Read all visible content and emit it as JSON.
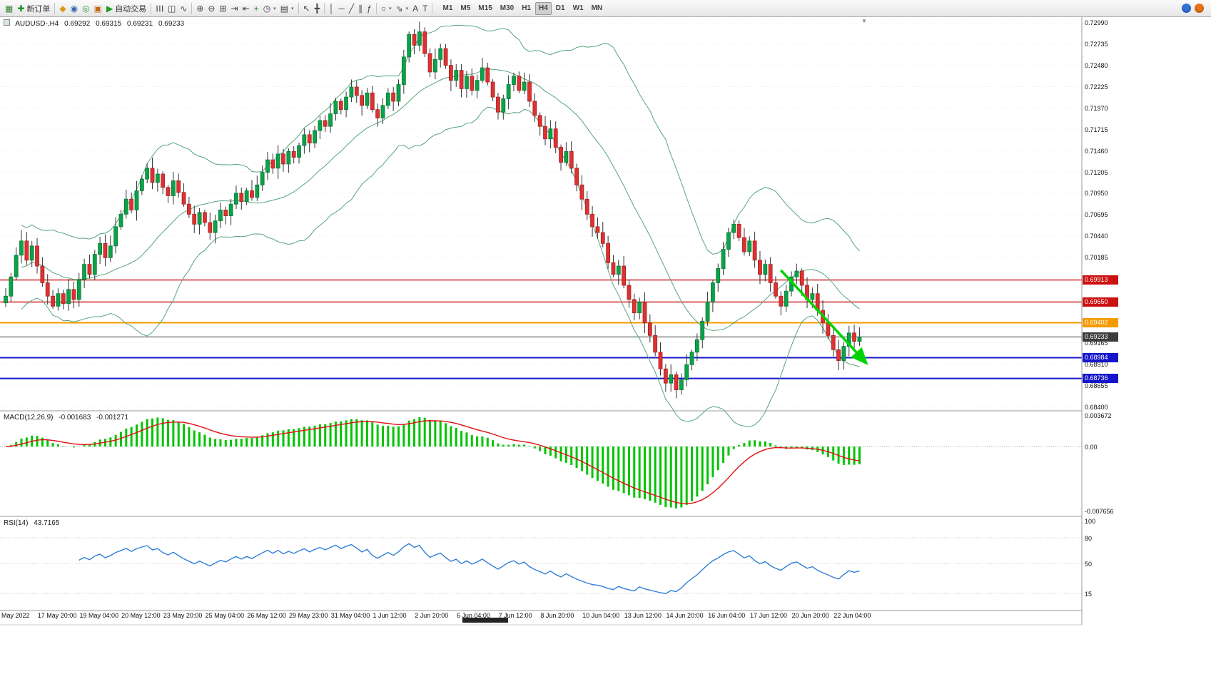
{
  "toolbar": {
    "items": [
      {
        "name": "new-chart-icon",
        "glyph": "▦",
        "color": "#3C8A3C"
      },
      {
        "name": "new-order-button",
        "glyph": "✚",
        "color": "#1C8A1C",
        "label": "新订单"
      },
      {
        "sep": true
      },
      {
        "name": "profiles-icon",
        "glyph": "◆",
        "color": "#D99A18"
      },
      {
        "name": "market-watch-icon",
        "glyph": "◉",
        "color": "#3467B0"
      },
      {
        "name": "navigator-icon",
        "glyph": "◎",
        "color": "#2E9E4F"
      },
      {
        "name": "terminal-icon",
        "glyph": "▣",
        "color": "#C06818"
      },
      {
        "name": "autotrading-button",
        "glyph": "▶",
        "color": "#17A017",
        "label": "自动交易"
      },
      {
        "sep": true
      },
      {
        "name": "bar-chart-icon",
        "glyph": "☰",
        "color": "#444",
        "rot": true
      },
      {
        "name": "candlestick-chart-icon",
        "glyph": "◫",
        "color": "#444"
      },
      {
        "name": "line-chart-icon",
        "glyph": "∿",
        "color": "#444"
      },
      {
        "sep": true
      },
      {
        "name": "zoom-in-icon",
        "glyph": "⊕",
        "color": "#444"
      },
      {
        "name": "zoom-out-icon",
        "glyph": "⊖",
        "color": "#444"
      },
      {
        "name": "tile-windows-icon",
        "glyph": "⊞",
        "color": "#444"
      },
      {
        "name": "auto-scroll-icon",
        "glyph": "⇥",
        "color": "#444"
      },
      {
        "name": "chart-shift-icon",
        "glyph": "⇤",
        "color": "#444"
      },
      {
        "name": "indicators-list-icon",
        "glyph": "+",
        "color": "#1C8A1C"
      },
      {
        "name": "periods-icon",
        "glyph": "◷",
        "color": "#444",
        "caret": true
      },
      {
        "name": "templates-icon",
        "glyph": "▤",
        "color": "#444",
        "caret": true
      },
      {
        "sep": true
      },
      {
        "name": "cursor-icon",
        "glyph": "↖",
        "color": "#444"
      },
      {
        "name": "crosshair-icon",
        "glyph": "╋",
        "color": "#444"
      },
      {
        "sep": true
      },
      {
        "name": "vertical-line-icon",
        "glyph": "│",
        "color": "#444"
      },
      {
        "name": "horizontal-line-icon",
        "glyph": "─",
        "color": "#444"
      },
      {
        "name": "trendline-icon",
        "glyph": "╱",
        "color": "#444"
      },
      {
        "name": "equidistant-channel-icon",
        "glyph": "∥",
        "color": "#444"
      },
      {
        "name": "fibonacci-icon",
        "glyph": "ƒ",
        "color": "#444"
      },
      {
        "sep": true
      },
      {
        "name": "shapes-icon",
        "glyph": "○",
        "color": "#444",
        "caret": true
      },
      {
        "name": "arrows-icon",
        "glyph": "⇘",
        "color": "#444",
        "caret": true
      },
      {
        "name": "text-icon",
        "glyph": "A",
        "color": "#444"
      },
      {
        "name": "text-label-icon",
        "glyph": "T",
        "color": "#444"
      },
      {
        "sep": true
      }
    ],
    "timeframes": [
      "M1",
      "M5",
      "M15",
      "M30",
      "H1",
      "H4",
      "D1",
      "W1",
      "MN"
    ],
    "active_timeframe": "H4",
    "right_icons": [
      {
        "name": "community-icon",
        "color": "#2E74D8"
      },
      {
        "name": "alerts-icon",
        "color": "#E8731A"
      }
    ]
  },
  "chart_header": {
    "symbol": "AUDUSD-,H4",
    "open": "0.69292",
    "high": "0.69315",
    "low": "0.69231",
    "close": "0.69233"
  },
  "price_axis": {
    "min": 0.684,
    "max": 0.73005,
    "labels": [
      "0.72990",
      "0.72735",
      "0.72480",
      "0.72225",
      "0.71970",
      "0.71715",
      "0.71460",
      "0.71205",
      "0.70950",
      "0.70695",
      "0.70440",
      "0.70185",
      "0.69165",
      "0.68910",
      "0.68655",
      "0.68400"
    ]
  },
  "macd_panel": {
    "title": "MACD(12,26,9)",
    "value_macd": "-0.001683",
    "value_signal": "-0.001271",
    "max": 0.003672,
    "min": -0.007656,
    "axis_labels": [
      {
        "text": "0.003672",
        "value": 0.003672
      },
      {
        "text": "0.00",
        "value": 0
      },
      {
        "text": "-0.007656",
        "value": -0.007656
      }
    ]
  },
  "rsi_panel": {
    "title": "RSI(14)",
    "value": "43.7165",
    "max": 100,
    "min": 0,
    "levels": [
      80,
      50,
      15
    ],
    "axis_labels": [
      {
        "text": "100",
        "value": 100
      },
      {
        "text": "80",
        "value": 80
      },
      {
        "text": "50",
        "value": 50
      },
      {
        "text": "15",
        "value": 15
      }
    ]
  },
  "chart_data": {
    "type": "candlestick",
    "symbol": "AUDUSD-",
    "timeframe": "H4",
    "current_bar": {
      "open": 0.69292,
      "high": 0.69315,
      "low": 0.69231,
      "close": 0.69233
    },
    "y_range": {
      "min": 0.684,
      "max": 0.73005
    },
    "closes": [
      0.6972,
      0.6995,
      0.7021,
      0.7038,
      0.7015,
      0.7032,
      0.7008,
      0.6988,
      0.6972,
      0.696,
      0.6975,
      0.6963,
      0.698,
      0.6968,
      0.6992,
      0.701,
      0.6998,
      0.7022,
      0.7035,
      0.7018,
      0.7032,
      0.7055,
      0.707,
      0.7088,
      0.7075,
      0.7098,
      0.7112,
      0.7125,
      0.7108,
      0.7118,
      0.7102,
      0.7092,
      0.711,
      0.7096,
      0.7082,
      0.707,
      0.7058,
      0.7072,
      0.706,
      0.7048,
      0.7062,
      0.7075,
      0.7068,
      0.7082,
      0.7095,
      0.7085,
      0.7098,
      0.709,
      0.7105,
      0.712,
      0.7135,
      0.7125,
      0.7142,
      0.713,
      0.7145,
      0.7138,
      0.7152,
      0.7165,
      0.7155,
      0.717,
      0.7182,
      0.7175,
      0.719,
      0.7205,
      0.7195,
      0.721,
      0.7222,
      0.7212,
      0.72,
      0.7215,
      0.7195,
      0.7185,
      0.72,
      0.7215,
      0.7205,
      0.7225,
      0.7258,
      0.7285,
      0.7272,
      0.7288,
      0.7262,
      0.724,
      0.7255,
      0.7268,
      0.7248,
      0.723,
      0.7242,
      0.722,
      0.7235,
      0.7218,
      0.723,
      0.7245,
      0.7228,
      0.721,
      0.7192,
      0.7208,
      0.7225,
      0.7235,
      0.7218,
      0.7228,
      0.7205,
      0.7188,
      0.7175,
      0.716,
      0.7172,
      0.715,
      0.7132,
      0.7145,
      0.7125,
      0.7105,
      0.7088,
      0.707,
      0.7055,
      0.7048,
      0.7035,
      0.7012,
      0.6998,
      0.7008,
      0.6985,
      0.6968,
      0.6952,
      0.6965,
      0.694,
      0.6925,
      0.6905,
      0.6885,
      0.6868,
      0.6878,
      0.686,
      0.6872,
      0.689,
      0.6905,
      0.692,
      0.6942,
      0.6965,
      0.6988,
      0.7005,
      0.7028,
      0.7048,
      0.7058,
      0.7042,
      0.7025,
      0.7038,
      0.7015,
      0.6998,
      0.701,
      0.6988,
      0.6972,
      0.696,
      0.6978,
      0.6995,
      0.7002,
      0.6985,
      0.6968,
      0.6975,
      0.6955,
      0.694,
      0.6925,
      0.6908,
      0.6895,
      0.6912,
      0.6928,
      0.6918,
      0.69233
    ],
    "horizontal_levels": [
      {
        "value": 0.69913,
        "label": "0.69913",
        "color": "#CC1111",
        "kind": "resistance"
      },
      {
        "value": 0.6965,
        "label": "0.69650",
        "color": "#CC1111",
        "kind": "resistance"
      },
      {
        "value": 0.69402,
        "label": "0.69402",
        "color": "#F59A00",
        "kind": "key-level"
      },
      {
        "value": 0.69233,
        "label": "0.69233",
        "color": "#3C3C3C",
        "kind": "current-price"
      },
      {
        "value": 0.68984,
        "label": "0.68984",
        "color": "#1515CC",
        "kind": "support"
      },
      {
        "value": 0.68736,
        "label": "0.68736",
        "color": "#1515CC",
        "kind": "support"
      }
    ],
    "indicators": {
      "bollinger_bands": {
        "period": 20,
        "deviation": 2,
        "color": "#55A47B"
      },
      "macd": {
        "fast": 12,
        "slow": 26,
        "signal": 9,
        "current_macd": -0.001683,
        "current_signal": -0.001271,
        "histogram_color": "#00C400",
        "signal_color": "#E01010"
      },
      "rsi": {
        "period": 14,
        "current": 43.7165,
        "color": "#2F7ED8"
      }
    },
    "trend_arrow": {
      "from_bar": 148,
      "from_price": 0.7003,
      "to_bar": 164,
      "to_price": 0.6894,
      "color": "#00D400"
    },
    "candle_up_color": "#0CA24A",
    "candle_down_color": "#DF3131",
    "bars_per_label": 8,
    "time_labels": [
      "May 2022",
      "17 May 20:00",
      "19 May 04:00",
      "20 May 12:00",
      "23 May 20:00",
      "25 May 04:00",
      "26 May 12:00",
      "29 May 23:00",
      "31 May 04:00",
      "1 Jun 12:00",
      "2 Jun 20:00",
      "6 Jun 04:00",
      "7 Jun 12:00",
      "8 Jun 20:00",
      "10 Jun 04:00",
      "13 Jun 12:00",
      "14 Jun 20:00",
      "16 Jun 04:00",
      "17 Jun 12:00",
      "20 Jun 20:00",
      "22 Jun 04:00"
    ]
  }
}
